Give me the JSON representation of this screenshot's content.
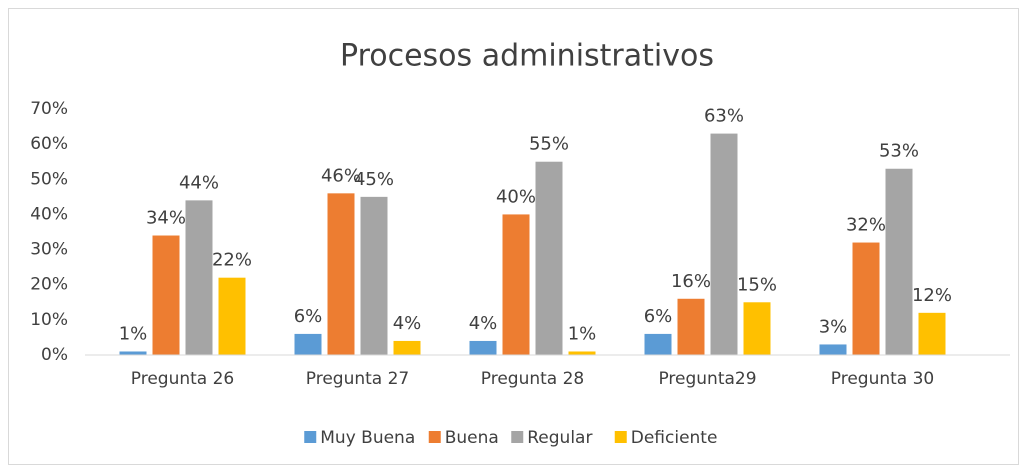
{
  "chart_data": {
    "type": "bar",
    "title": "Procesos administrativos",
    "categories": [
      "Pregunta 26",
      "Pregunta 27",
      "Pregunta 28",
      "Pregunta29",
      "Pregunta 30"
    ],
    "series": [
      {
        "name": "Muy Buena",
        "color": "#5b9bd5",
        "values": [
          1,
          6,
          4,
          6,
          3
        ],
        "value_labels": [
          "1%",
          "6%",
          "4%",
          "6%",
          "3%"
        ]
      },
      {
        "name": "Buena",
        "color": "#ed7d31",
        "values": [
          34,
          46,
          40,
          16,
          32
        ],
        "value_labels": [
          "34%",
          "46%",
          "40%",
          "16%",
          "32%"
        ]
      },
      {
        "name": "Regular",
        "color": "#a5a5a5",
        "values": [
          44,
          45,
          55,
          63,
          53
        ],
        "value_labels": [
          "44%",
          "45%",
          "55%",
          "63%",
          "53%"
        ]
      },
      {
        "name": "Deficiente",
        "color": "#ffc000",
        "values": [
          22,
          4,
          1,
          15,
          12
        ],
        "value_labels": [
          "22%",
          "4%",
          "1%",
          "15%",
          "12%"
        ]
      }
    ],
    "ylim": [
      0,
      70
    ],
    "yticks": [
      {
        "value": 0,
        "label": "0%"
      },
      {
        "value": 10,
        "label": "10%"
      },
      {
        "value": 20,
        "label": "20%"
      },
      {
        "value": 30,
        "label": "30%"
      },
      {
        "value": 40,
        "label": "40%"
      },
      {
        "value": 50,
        "label": "50%"
      },
      {
        "value": 60,
        "label": "60%"
      },
      {
        "value": 70,
        "label": "70%"
      }
    ],
    "legend": "bottom",
    "grid": false
  }
}
